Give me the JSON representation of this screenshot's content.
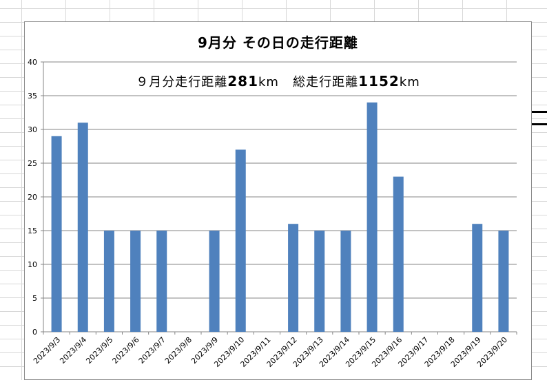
{
  "chart_data": {
    "type": "bar",
    "title": "9月分  その日の走行距離",
    "annotation": {
      "prefix1": "９月分走行距離",
      "value1": "281",
      "unit1": "km",
      "prefix2": "総走行距離",
      "value2": "1152",
      "unit2": "km"
    },
    "categories": [
      "2023/9/3",
      "2023/9/4",
      "2023/9/5",
      "2023/9/6",
      "2023/9/7",
      "2023/9/8",
      "2023/9/9",
      "2023/9/10",
      "2023/9/11",
      "2023/9/12",
      "2023/9/13",
      "2023/9/14",
      "2023/9/15",
      "2023/9/16",
      "2023/9/17",
      "2023/9/18",
      "2023/9/19",
      "2023/9/20"
    ],
    "values": [
      29,
      31,
      15,
      15,
      15,
      0,
      15,
      27,
      0,
      16,
      15,
      15,
      34,
      23,
      0,
      0,
      16,
      15
    ],
    "ylim": [
      0,
      40
    ],
    "yticks": [
      0,
      5,
      10,
      15,
      20,
      25,
      30,
      35,
      40
    ],
    "grid": true,
    "legend": "none",
    "bar_color": "#4f81bd"
  }
}
